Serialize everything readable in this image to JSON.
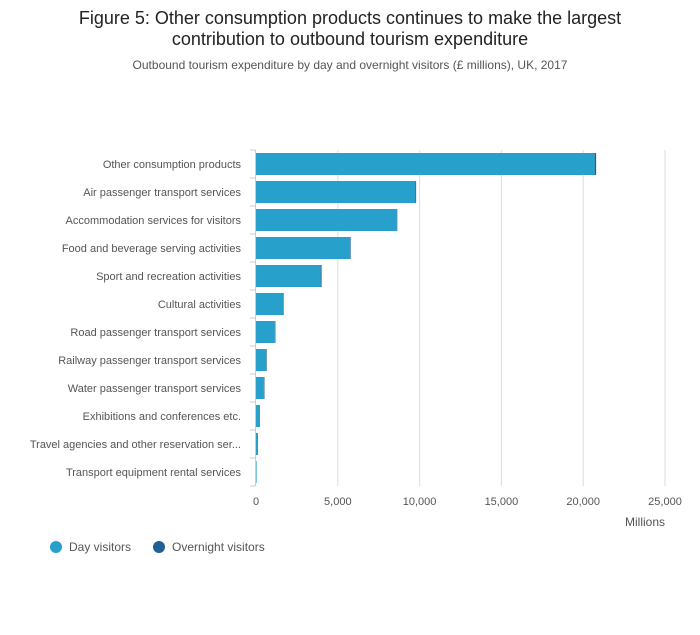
{
  "header": {
    "title_line1": "Figure 5: Other consumption products continues to make the largest",
    "title_line2": "contribution to outbound tourism expenditure",
    "subtitle": "Outbound tourism expenditure by day and overnight visitors (£ millions), UK, 2017"
  },
  "chart_data": {
    "type": "bar",
    "orientation": "horizontal",
    "stacked": true,
    "categories": [
      "Transport equipment rental services",
      "Travel agencies and other reservation ser...",
      "Exhibitions and conferences etc.",
      "Water passenger transport services",
      "Railway passenger transport services",
      "Road passenger transport services",
      "Cultural activities",
      "Sport and recreation activities",
      "Food and beverage serving activities",
      "Accommodation services for visitors",
      "Air passenger transport services",
      "Other consumption products"
    ],
    "series": [
      {
        "name": "Day visitors",
        "color": "#27a0cc",
        "values": [
          10,
          80,
          200,
          480,
          620,
          1150,
          1650,
          3950,
          5750,
          8600,
          9750,
          20700
        ]
      },
      {
        "name": "Overnight visitors",
        "color": "#206095",
        "values": [
          0,
          5,
          5,
          10,
          10,
          15,
          20,
          60,
          20,
          30,
          30,
          90
        ]
      }
    ],
    "xlabel": "Millions",
    "xlim": [
      0,
      25000
    ],
    "xticks": [
      0,
      5000,
      10000,
      15000,
      20000,
      25000
    ],
    "xtick_labels": [
      "0",
      "5,000",
      "10,000",
      "15,000",
      "20,000",
      "25,000"
    ],
    "grid": true,
    "legend_position": "bottom-left"
  }
}
